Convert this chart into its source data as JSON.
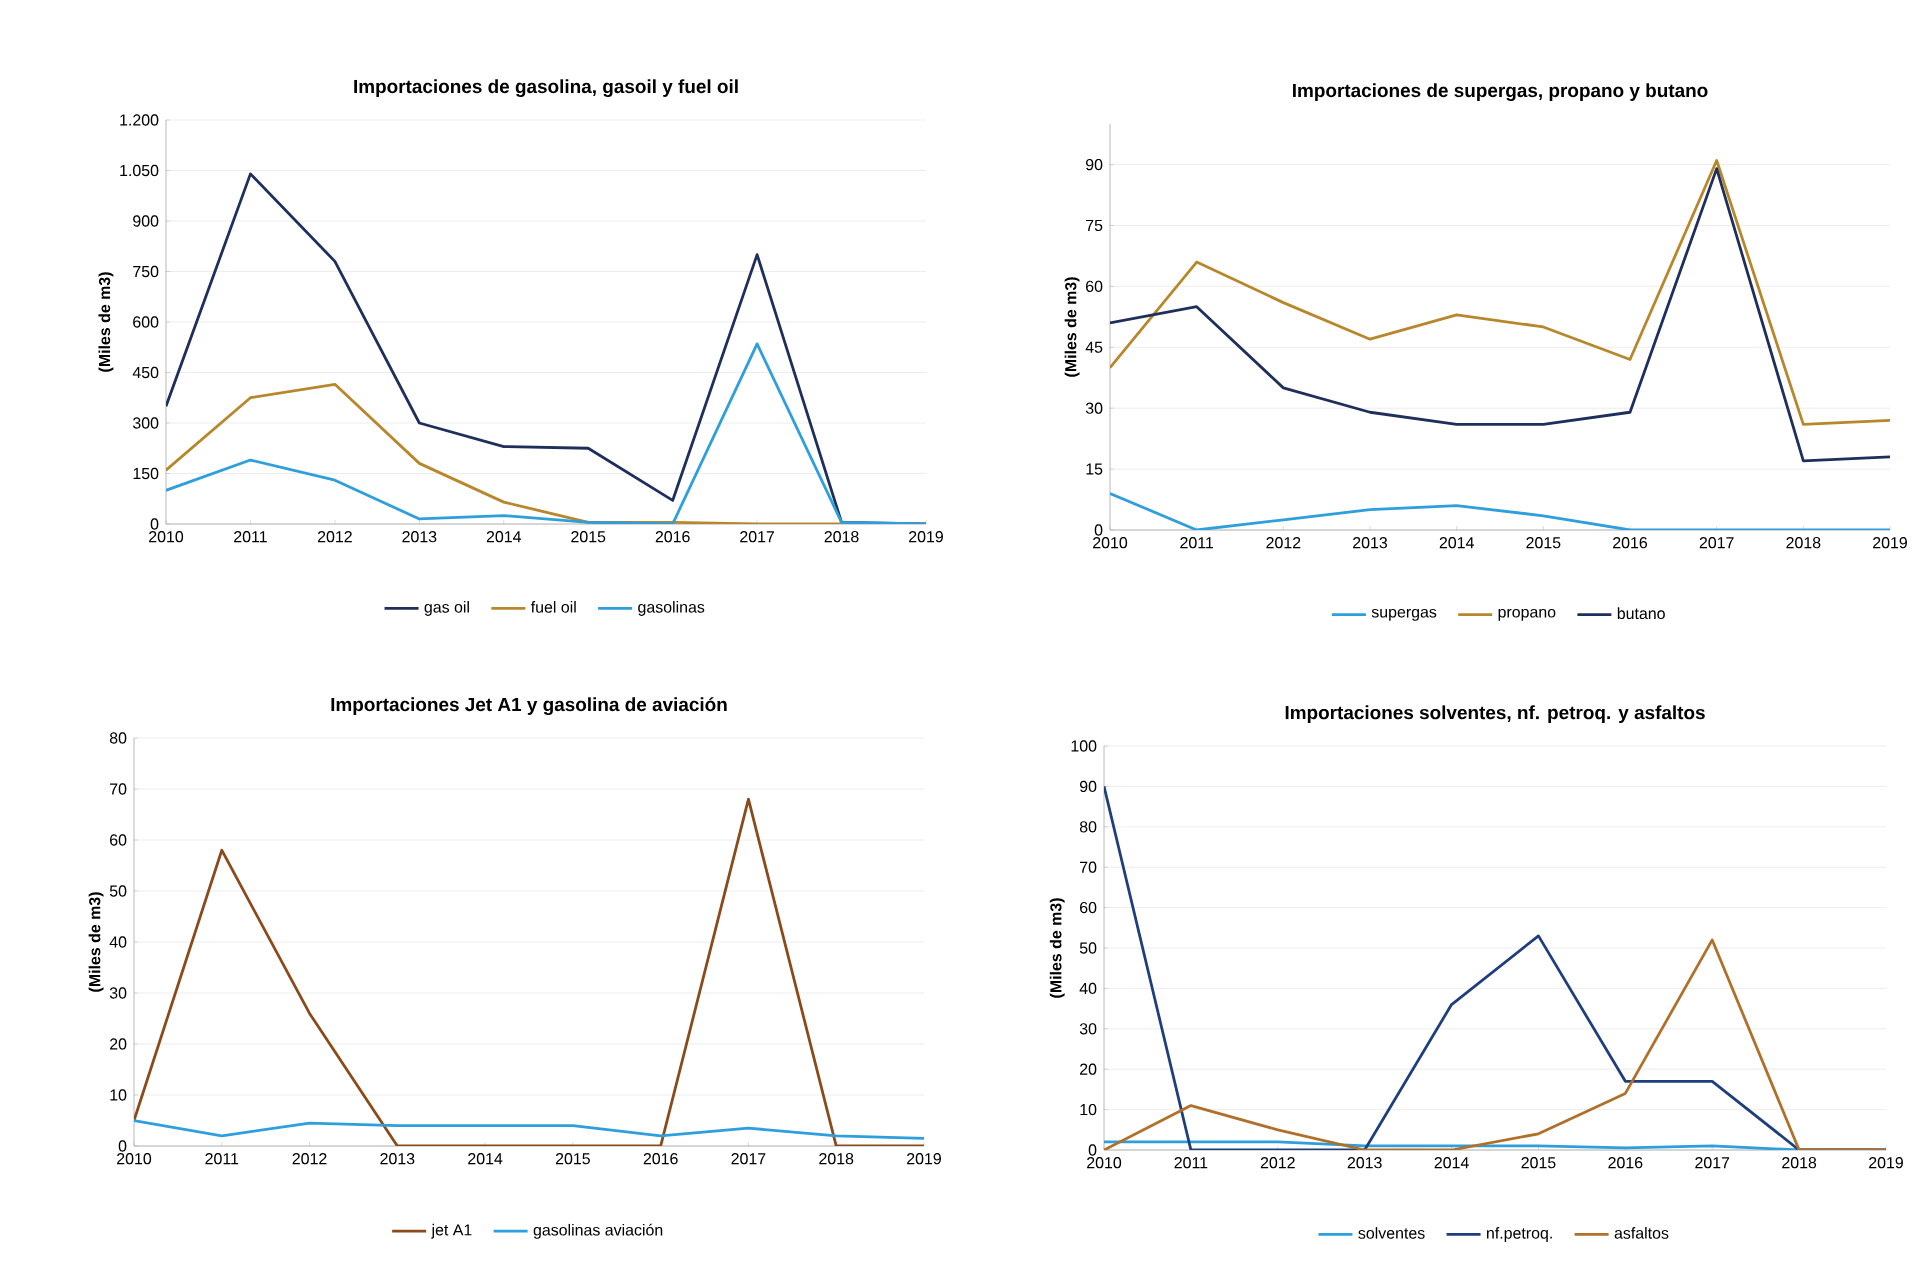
{
  "chart_data": [
    {
      "type": "line",
      "title": "Importaciones de gasolina, gasoil y fuel oil",
      "ylabel": "(Miles de m3)",
      "categories": [
        "2010",
        "2011",
        "2012",
        "2013",
        "2014",
        "2015",
        "2016",
        "2017",
        "2018",
        "2019"
      ],
      "ylim": [
        0,
        1200
      ],
      "yticks": [
        0,
        150,
        300,
        450,
        600,
        750,
        900,
        {
          "value": 1050,
          "label": "1.050"
        },
        {
          "value": 1200,
          "label": "1.200"
        }
      ],
      "grid": "y",
      "legend": "bottom",
      "marker": "none",
      "series": [
        {
          "name": "gas oil",
          "color": "#1f2f5c",
          "values": [
            350,
            1040,
            780,
            300,
            230,
            225,
            70,
            800,
            5,
            0
          ]
        },
        {
          "name": "fuel oil",
          "color": "#b8862b",
          "values": [
            160,
            375,
            415,
            180,
            65,
            5,
            5,
            0,
            0,
            0
          ]
        },
        {
          "name": "gasolinas",
          "color": "#2e9fdc",
          "values": [
            100,
            190,
            130,
            15,
            25,
            5,
            0,
            535,
            5,
            0
          ]
        }
      ]
    },
    {
      "type": "line",
      "title": "Importaciones de supergas, propano y butano",
      "ylabel": "(Miles de m3)",
      "categories": [
        "2010",
        "2011",
        "2012",
        "2013",
        "2014",
        "2015",
        "2016",
        "2017",
        "2018",
        "2019"
      ],
      "ylim": [
        0,
        100
      ],
      "yticks": [
        0,
        15,
        30,
        45,
        60,
        75,
        90
      ],
      "grid": "y",
      "legend": "bottom",
      "marker": "none",
      "series": [
        {
          "name": "supergas",
          "color": "#2e9fdc",
          "values": [
            9,
            0,
            2.5,
            5,
            6,
            3.5,
            0,
            0,
            0,
            0
          ]
        },
        {
          "name": "propano",
          "color": "#b8862b",
          "values": [
            40,
            66,
            56,
            47,
            53,
            50,
            42,
            91,
            26,
            27
          ]
        },
        {
          "name": "butano",
          "color": "#1f2f5c",
          "values": [
            51,
            55,
            35,
            29,
            26,
            26,
            29,
            89,
            17,
            18
          ]
        }
      ]
    },
    {
      "type": "line",
      "title": "Importaciones Jet A1 y gasolina de aviación",
      "ylabel": "(Miles de m3)",
      "categories": [
        "2010",
        "2011",
        "2012",
        "2013",
        "2014",
        "2015",
        "2016",
        "2017",
        "2018",
        "2019"
      ],
      "ylim": [
        0,
        80
      ],
      "yticks": [
        0,
        10,
        20,
        30,
        40,
        50,
        60,
        70,
        80
      ],
      "grid": "y",
      "legend": "bottom",
      "marker": "none",
      "series": [
        {
          "name": "jet A1",
          "color": "#8b4a1c",
          "values": [
            5,
            58,
            26,
            0,
            0,
            0,
            0,
            68,
            0,
            0
          ]
        },
        {
          "name": "gasolinas aviación",
          "color": "#2e9fdc",
          "values": [
            5,
            2,
            4.5,
            4,
            4,
            4,
            2,
            3.5,
            2,
            1.5
          ]
        }
      ]
    },
    {
      "type": "line",
      "title": "Importaciones solventes, nf. petroq. y asfaltos",
      "ylabel": "(Miles de m3)",
      "categories": [
        "2010",
        "2011",
        "2012",
        "2013",
        "2014",
        "2015",
        "2016",
        "2017",
        "2018",
        "2019"
      ],
      "ylim": [
        0,
        100
      ],
      "yticks": [
        0,
        10,
        20,
        30,
        40,
        50,
        60,
        70,
        80,
        90,
        100
      ],
      "grid": "y",
      "legend": "bottom",
      "marker": "none",
      "series": [
        {
          "name": "solventes",
          "color": "#2e9fdc",
          "values": [
            2,
            2,
            2,
            1,
            1,
            1,
            0.5,
            1,
            0,
            0
          ]
        },
        {
          "name": "nf.petroq.",
          "color": "#1f3f7c",
          "values": [
            90,
            0,
            0,
            0,
            36,
            53,
            17,
            17,
            0,
            0
          ]
        },
        {
          "name": "asfaltos",
          "color": "#b0702a",
          "values": [
            0,
            11,
            5,
            0,
            0,
            4,
            14,
            52,
            0,
            0
          ]
        }
      ]
    }
  ]
}
